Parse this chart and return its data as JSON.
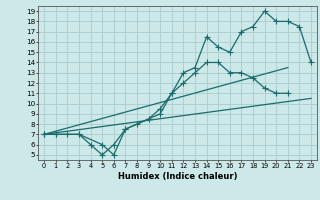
{
  "xlabel": "Humidex (Indice chaleur)",
  "bg_color": "#cce8e8",
  "grid_color": "#aacccc",
  "line_color": "#1a6b6b",
  "xlim": [
    -0.5,
    23.5
  ],
  "ylim": [
    4.5,
    19.5
  ],
  "xticks": [
    0,
    1,
    2,
    3,
    4,
    5,
    6,
    7,
    8,
    9,
    10,
    11,
    12,
    13,
    14,
    15,
    16,
    17,
    18,
    19,
    20,
    21,
    22,
    23
  ],
  "yticks": [
    5,
    6,
    7,
    8,
    9,
    10,
    11,
    12,
    13,
    14,
    15,
    16,
    17,
    18,
    19
  ],
  "curve1_x": [
    0,
    1,
    2,
    3,
    4,
    5,
    6,
    7,
    8,
    9,
    10,
    11,
    12,
    13,
    14,
    15,
    16,
    17,
    18,
    19,
    20,
    21
  ],
  "curve1_y": [
    7,
    7,
    7,
    7,
    6,
    5,
    6,
    7.5,
    8,
    8.5,
    9.5,
    11,
    12,
    13,
    14,
    14,
    13,
    13,
    12.5,
    11.5,
    11,
    11
  ],
  "curve2_x": [
    0,
    1,
    3,
    5,
    6,
    7,
    10,
    11,
    12,
    13,
    14,
    15,
    16,
    17,
    18,
    19,
    20,
    21,
    22,
    23
  ],
  "curve2_y": [
    7,
    7,
    7,
    6,
    5,
    7.5,
    9,
    11,
    13,
    13.5,
    16.5,
    15.5,
    15,
    17,
    17.5,
    19,
    18,
    18,
    17.5,
    14
  ],
  "line1_x": [
    0,
    23
  ],
  "line1_y": [
    7,
    10.5
  ],
  "line2_x": [
    0,
    21
  ],
  "line2_y": [
    7,
    13.5
  ]
}
